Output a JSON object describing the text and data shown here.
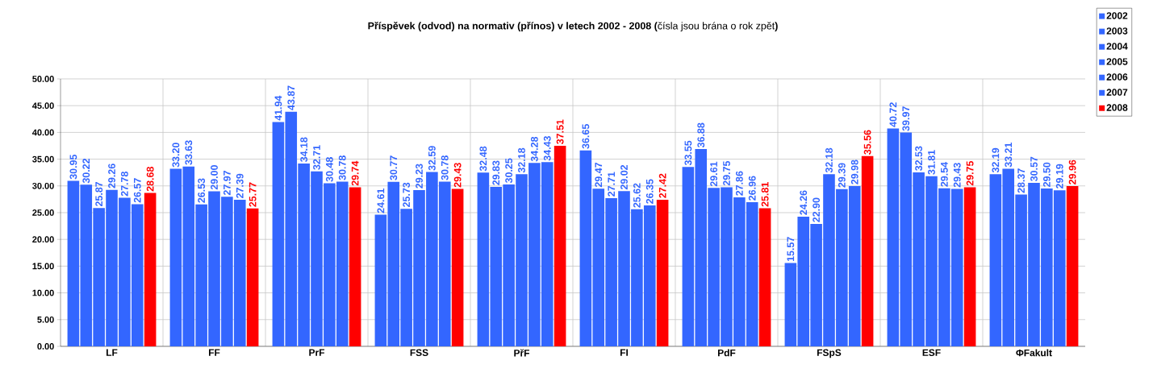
{
  "chart_data": {
    "type": "bar",
    "title": "**Příspěvek (odvod) na normativ (přínos) v letech 2002 - 2008 (**čísla jsou brána o rok zpět**)**",
    "categories": [
      "LF",
      "FF",
      "PrF",
      "FSS",
      "PřF",
      "FI",
      "PdF",
      "FSpS",
      "ESF",
      "ΦFakult"
    ],
    "series": [
      {
        "name": "2002",
        "color": "#3366ff",
        "values": [
          30.95,
          33.2,
          41.94,
          24.61,
          32.48,
          36.65,
          33.55,
          15.57,
          40.72,
          32.19
        ],
        "value_labels": [
          "30.95",
          "33.20",
          "41.94",
          "24.61",
          "32.48",
          "36.65",
          "33.55",
          "15.57",
          "40.72",
          "32.19"
        ]
      },
      {
        "name": "2003",
        "color": "#3366ff",
        "values": [
          30.22,
          33.63,
          43.87,
          30.77,
          29.83,
          29.47,
          36.88,
          24.26,
          39.97,
          33.21
        ],
        "value_labels": [
          "30.22",
          "33.63",
          "43.87",
          "30.77",
          "29.83",
          "29.47",
          "36.88",
          "24.26",
          "39.97",
          "33.21"
        ]
      },
      {
        "name": "2004",
        "color": "#3366ff",
        "values": [
          25.87,
          26.53,
          34.18,
          25.73,
          30.25,
          27.71,
          29.61,
          22.9,
          32.53,
          28.37
        ],
        "value_labels": [
          "25.87",
          "26.53",
          "34.18",
          "25.73",
          "30.25",
          "27.71",
          "29.61",
          "22.90",
          "32.53",
          "28.37"
        ]
      },
      {
        "name": "2005",
        "color": "#3366ff",
        "values": [
          29.26,
          29.0,
          32.71,
          29.23,
          32.18,
          29.02,
          29.75,
          32.18,
          31.81,
          30.57
        ],
        "value_labels": [
          "29.26",
          "29.00",
          "32.71",
          "29.23",
          "32.18",
          "29.02",
          "29.75",
          "32.18",
          "31.81",
          "30.57"
        ]
      },
      {
        "name": "2006",
        "color": "#3366ff",
        "values": [
          27.78,
          27.97,
          30.48,
          32.59,
          34.28,
          25.62,
          27.86,
          29.39,
          29.54,
          29.5
        ],
        "value_labels": [
          "27.78",
          "27.97",
          "30.48",
          "32.59",
          "34.28",
          "25.62",
          "27.86",
          "29.39",
          "29.54",
          "29.50"
        ]
      },
      {
        "name": "2007",
        "color": "#3366ff",
        "values": [
          26.57,
          27.39,
          30.78,
          30.78,
          34.43,
          26.35,
          26.96,
          29.98,
          29.43,
          29.19
        ],
        "value_labels": [
          "26.57",
          "27.39",
          "30.78",
          "30.78",
          "34.43",
          "26.35",
          "26.96",
          "29.98",
          "29.43",
          "29.19"
        ]
      },
      {
        "name": "2008",
        "color": "#ff0000",
        "values": [
          28.68,
          25.77,
          29.74,
          29.43,
          37.51,
          27.42,
          25.81,
          35.56,
          29.75,
          29.96
        ],
        "value_labels": [
          "28.68",
          "25.77",
          "29.74",
          "29.43",
          "37.51",
          "27.42",
          "25.81",
          "35.56",
          "29.75",
          "29.96"
        ]
      }
    ],
    "ylim": [
      0,
      50
    ],
    "yticks": [
      {
        "value": 0,
        "label": "0.00"
      },
      {
        "value": 5,
        "label": "5.00"
      },
      {
        "value": 10,
        "label": "10.00"
      },
      {
        "value": 15,
        "label": "15.00"
      },
      {
        "value": 20,
        "label": "20.00"
      },
      {
        "value": 25,
        "label": "25.00"
      },
      {
        "value": 30,
        "label": "30.00"
      },
      {
        "value": 35,
        "label": "35.00"
      },
      {
        "value": 40,
        "label": "40.00"
      },
      {
        "value": 45,
        "label": "45.00"
      },
      {
        "value": 50,
        "label": "50.00"
      }
    ],
    "grid": true,
    "legend": "top right"
  }
}
